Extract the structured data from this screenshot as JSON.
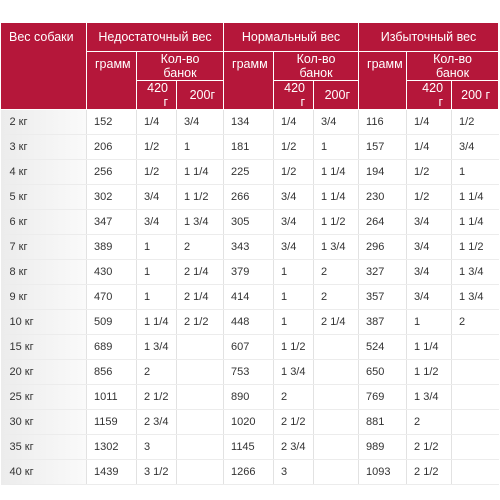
{
  "table": {
    "header": {
      "weight": "Вес собаки",
      "groups": [
        "Недостаточный вес",
        "Нормальный вес",
        "Избыточный вес"
      ],
      "grams": [
        "грамм",
        "грамм",
        "грамм"
      ],
      "cans": [
        "Кол-во банок",
        "Кол-во банок",
        "Кол-во банок"
      ],
      "sizes": [
        "420 г",
        "200г",
        "420 г",
        "200г",
        "420 г",
        "200 г"
      ]
    },
    "rows": [
      [
        "2 кг",
        152,
        "1/4",
        "3/4",
        134,
        "1/4",
        "3/4",
        116,
        "1/4",
        "1/2"
      ],
      [
        "3 кг",
        206,
        "1/2",
        "1",
        181,
        "1/2",
        "1",
        157,
        "1/4",
        "3/4"
      ],
      [
        "4 кг",
        256,
        "1/2",
        "1 1/4",
        225,
        "1/2",
        "1 1/4",
        194,
        "1/2",
        "1"
      ],
      [
        "5 кг",
        302,
        "3/4",
        "1 1/2",
        266,
        "3/4",
        "1 1/4",
        230,
        "1/2",
        "1 1/4"
      ],
      [
        "6 кг",
        347,
        "3/4",
        "1 3/4",
        305,
        "3/4",
        "1 1/2",
        264,
        "3/4",
        "1 1/4"
      ],
      [
        "7 кг",
        389,
        "1",
        "2",
        343,
        "3/4",
        "1 3/4",
        296,
        "3/4",
        "1 1/2"
      ],
      [
        "8 кг",
        430,
        "1",
        "2 1/4",
        379,
        "1",
        "2",
        327,
        "3/4",
        "1 3/4"
      ],
      [
        "9 кг",
        470,
        "1",
        "2 1/4",
        414,
        "1",
        "2",
        357,
        "3/4",
        "1 3/4"
      ],
      [
        "10 кг",
        509,
        "1 1/4",
        "2 1/2",
        448,
        "1",
        "2 1/4",
        387,
        "1",
        "2"
      ],
      [
        "15 кг",
        689,
        "1 3/4",
        null,
        607,
        "1 1/2",
        null,
        524,
        "1 1/4",
        null
      ],
      [
        "20 кг",
        856,
        "2",
        null,
        753,
        "1 3/4",
        null,
        650,
        "1 1/2",
        null
      ],
      [
        "25 кг",
        1011,
        "2 1/2",
        null,
        890,
        "2",
        null,
        769,
        "1 3/4",
        null
      ],
      [
        "30 кг",
        1159,
        "2 3/4",
        null,
        1020,
        "2 1/2",
        null,
        881,
        "2",
        null
      ],
      [
        "35 кг",
        1302,
        "3",
        null,
        1145,
        "2 3/4",
        null,
        989,
        "2 1/2",
        null
      ],
      [
        "40 кг",
        1439,
        "3 1/2",
        null,
        1266,
        "3",
        null,
        1093,
        "2 1/2",
        null
      ]
    ]
  }
}
